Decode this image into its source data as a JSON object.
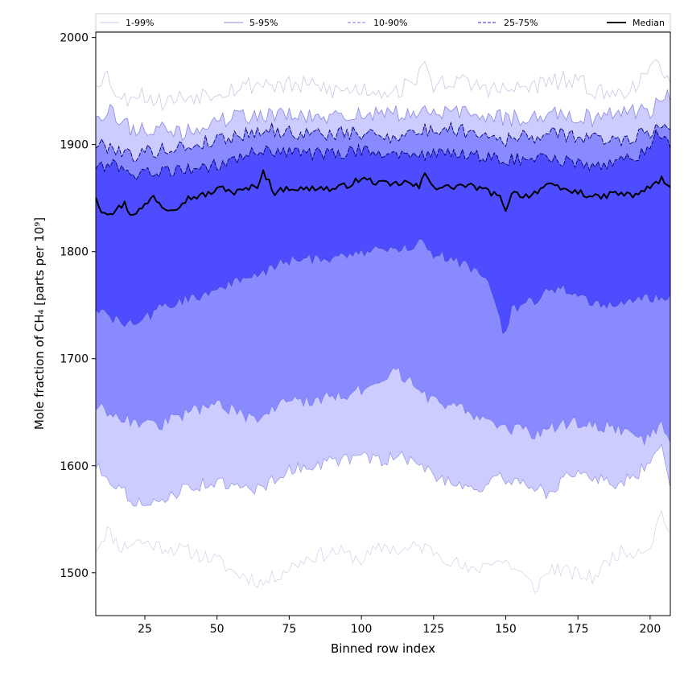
{
  "chart_data": {
    "type": "area",
    "title": "",
    "xlabel": "Binned row index",
    "ylabel": "Mole fraction of CH₄ [parts per 10⁹]",
    "xlim": [
      8,
      207
    ],
    "ylim": [
      1460,
      2005
    ],
    "xticks": [
      25,
      50,
      75,
      100,
      125,
      150,
      175,
      200
    ],
    "yticks": [
      1500,
      1600,
      1700,
      1800,
      1900,
      2000
    ],
    "x_start": 8,
    "x_end": 207,
    "grid": false,
    "legend_position": "top, above plot",
    "bands": [
      {
        "name": "1-99%",
        "color": "#ffffff",
        "line_color": "#c8c8e6",
        "lower_knots": [
          [
            8,
            1522
          ],
          [
            12,
            1540
          ],
          [
            17,
            1523
          ],
          [
            22,
            1530
          ],
          [
            30,
            1525
          ],
          [
            40,
            1520
          ],
          [
            50,
            1512
          ],
          [
            56,
            1500
          ],
          [
            62,
            1495
          ],
          [
            66,
            1490
          ],
          [
            72,
            1500
          ],
          [
            82,
            1515
          ],
          [
            92,
            1520
          ],
          [
            100,
            1512
          ],
          [
            108,
            1525
          ],
          [
            114,
            1520
          ],
          [
            120,
            1525
          ],
          [
            126,
            1520
          ],
          [
            132,
            1510
          ],
          [
            138,
            1500
          ],
          [
            145,
            1512
          ],
          [
            150,
            1510
          ],
          [
            155,
            1500
          ],
          [
            160,
            1485
          ],
          [
            166,
            1505
          ],
          [
            172,
            1500
          ],
          [
            180,
            1495
          ],
          [
            188,
            1518
          ],
          [
            194,
            1520
          ],
          [
            200,
            1525
          ],
          [
            204,
            1558
          ],
          [
            207,
            1535
          ]
        ],
        "upper_knots": [
          [
            8,
            1960
          ],
          [
            12,
            1965
          ],
          [
            17,
            1940
          ],
          [
            22,
            1950
          ],
          [
            30,
            1940
          ],
          [
            40,
            1945
          ],
          [
            50,
            1950
          ],
          [
            60,
            1955
          ],
          [
            66,
            1958
          ],
          [
            72,
            1955
          ],
          [
            82,
            1955
          ],
          [
            92,
            1950
          ],
          [
            100,
            1952
          ],
          [
            110,
            1950
          ],
          [
            118,
            1955
          ],
          [
            121,
            1980
          ],
          [
            124,
            1955
          ],
          [
            130,
            1960
          ],
          [
            140,
            1955
          ],
          [
            150,
            1950
          ],
          [
            160,
            1955
          ],
          [
            170,
            1960
          ],
          [
            178,
            1955
          ],
          [
            186,
            1945
          ],
          [
            194,
            1955
          ],
          [
            200,
            1965
          ],
          [
            203,
            1978
          ],
          [
            207,
            1962
          ]
        ]
      },
      {
        "name": "5-95%",
        "color": "#ccccff",
        "line_color": "#8888dd",
        "lower_knots": [
          [
            8,
            1600
          ],
          [
            14,
            1585
          ],
          [
            20,
            1570
          ],
          [
            26,
            1560
          ],
          [
            32,
            1570
          ],
          [
            40,
            1580
          ],
          [
            50,
            1585
          ],
          [
            58,
            1578
          ],
          [
            66,
            1580
          ],
          [
            74,
            1595
          ],
          [
            82,
            1600
          ],
          [
            92,
            1605
          ],
          [
            100,
            1608
          ],
          [
            108,
            1605
          ],
          [
            114,
            1610
          ],
          [
            120,
            1600
          ],
          [
            126,
            1590
          ],
          [
            132,
            1585
          ],
          [
            140,
            1578
          ],
          [
            148,
            1588
          ],
          [
            156,
            1585
          ],
          [
            164,
            1575
          ],
          [
            172,
            1590
          ],
          [
            180,
            1590
          ],
          [
            188,
            1583
          ],
          [
            194,
            1588
          ],
          [
            200,
            1605
          ],
          [
            204,
            1625
          ],
          [
            207,
            1580
          ]
        ],
        "upper_knots": [
          [
            8,
            1930
          ],
          [
            14,
            1930
          ],
          [
            20,
            1915
          ],
          [
            28,
            1915
          ],
          [
            38,
            1910
          ],
          [
            48,
            1920
          ],
          [
            56,
            1925
          ],
          [
            64,
            1928
          ],
          [
            72,
            1928
          ],
          [
            82,
            1925
          ],
          [
            92,
            1925
          ],
          [
            100,
            1930
          ],
          [
            110,
            1928
          ],
          [
            120,
            1930
          ],
          [
            130,
            1930
          ],
          [
            140,
            1928
          ],
          [
            150,
            1925
          ],
          [
            160,
            1925
          ],
          [
            170,
            1930
          ],
          [
            180,
            1925
          ],
          [
            190,
            1930
          ],
          [
            200,
            1932
          ],
          [
            204,
            1945
          ],
          [
            207,
            1945
          ]
        ]
      },
      {
        "name": "10-90%",
        "color": "#8a8aff",
        "line_color": "#7777ee",
        "lower_knots": [
          [
            8,
            1655
          ],
          [
            14,
            1650
          ],
          [
            22,
            1640
          ],
          [
            30,
            1638
          ],
          [
            40,
            1650
          ],
          [
            50,
            1660
          ],
          [
            58,
            1648
          ],
          [
            64,
            1640
          ],
          [
            72,
            1660
          ],
          [
            80,
            1660
          ],
          [
            90,
            1665
          ],
          [
            100,
            1670
          ],
          [
            108,
            1675
          ],
          [
            112,
            1690
          ],
          [
            118,
            1675
          ],
          [
            124,
            1662
          ],
          [
            130,
            1658
          ],
          [
            138,
            1650
          ],
          [
            146,
            1640
          ],
          [
            152,
            1635
          ],
          [
            160,
            1630
          ],
          [
            170,
            1640
          ],
          [
            180,
            1640
          ],
          [
            190,
            1633
          ],
          [
            198,
            1625
          ],
          [
            204,
            1640
          ],
          [
            207,
            1625
          ]
        ],
        "upper_knots": [
          [
            8,
            1900
          ],
          [
            14,
            1898
          ],
          [
            20,
            1890
          ],
          [
            30,
            1895
          ],
          [
            40,
            1898
          ],
          [
            50,
            1905
          ],
          [
            60,
            1910
          ],
          [
            66,
            1915
          ],
          [
            72,
            1912
          ],
          [
            82,
            1910
          ],
          [
            92,
            1910
          ],
          [
            100,
            1910
          ],
          [
            110,
            1908
          ],
          [
            120,
            1912
          ],
          [
            130,
            1915
          ],
          [
            140,
            1912
          ],
          [
            150,
            1905
          ],
          [
            160,
            1908
          ],
          [
            170,
            1910
          ],
          [
            180,
            1905
          ],
          [
            190,
            1905
          ],
          [
            200,
            1912
          ],
          [
            204,
            1918
          ],
          [
            207,
            1918
          ]
        ]
      },
      {
        "name": "25-75%",
        "color": "#4d4dff",
        "line_color": "#4444cc",
        "lower_knots": [
          [
            8,
            1748
          ],
          [
            12,
            1740
          ],
          [
            18,
            1732
          ],
          [
            24,
            1735
          ],
          [
            30,
            1748
          ],
          [
            36,
            1752
          ],
          [
            42,
            1758
          ],
          [
            48,
            1762
          ],
          [
            54,
            1770
          ],
          [
            60,
            1775
          ],
          [
            66,
            1780
          ],
          [
            72,
            1790
          ],
          [
            80,
            1793
          ],
          [
            90,
            1795
          ],
          [
            100,
            1800
          ],
          [
            110,
            1802
          ],
          [
            118,
            1805
          ],
          [
            121,
            1815
          ],
          [
            124,
            1798
          ],
          [
            130,
            1795
          ],
          [
            136,
            1788
          ],
          [
            142,
            1780
          ],
          [
            146,
            1760
          ],
          [
            149,
            1722
          ],
          [
            152,
            1745
          ],
          [
            156,
            1750
          ],
          [
            162,
            1758
          ],
          [
            168,
            1768
          ],
          [
            174,
            1762
          ],
          [
            182,
            1750
          ],
          [
            190,
            1752
          ],
          [
            198,
            1755
          ],
          [
            204,
            1760
          ],
          [
            207,
            1755
          ]
        ],
        "upper_knots": [
          [
            8,
            1880
          ],
          [
            14,
            1880
          ],
          [
            20,
            1872
          ],
          [
            28,
            1875
          ],
          [
            38,
            1875
          ],
          [
            48,
            1880
          ],
          [
            58,
            1888
          ],
          [
            66,
            1895
          ],
          [
            72,
            1893
          ],
          [
            82,
            1892
          ],
          [
            92,
            1890
          ],
          [
            100,
            1895
          ],
          [
            110,
            1893
          ],
          [
            120,
            1890
          ],
          [
            130,
            1892
          ],
          [
            140,
            1890
          ],
          [
            150,
            1885
          ],
          [
            160,
            1888
          ],
          [
            170,
            1885
          ],
          [
            180,
            1880
          ],
          [
            190,
            1885
          ],
          [
            198,
            1892
          ],
          [
            202,
            1910
          ],
          [
            207,
            1900
          ]
        ]
      }
    ],
    "median": {
      "name": "Median",
      "color": "#000000",
      "knots": [
        [
          8,
          1852
        ],
        [
          10,
          1838
        ],
        [
          14,
          1837
        ],
        [
          18,
          1845
        ],
        [
          20,
          1835
        ],
        [
          24,
          1840
        ],
        [
          28,
          1852
        ],
        [
          32,
          1840
        ],
        [
          36,
          1842
        ],
        [
          40,
          1850
        ],
        [
          44,
          1852
        ],
        [
          48,
          1855
        ],
        [
          52,
          1860
        ],
        [
          56,
          1855
        ],
        [
          60,
          1858
        ],
        [
          64,
          1862
        ],
        [
          66,
          1875
        ],
        [
          70,
          1855
        ],
        [
          75,
          1860
        ],
        [
          80,
          1858
        ],
        [
          85,
          1860
        ],
        [
          90,
          1858
        ],
        [
          95,
          1862
        ],
        [
          100,
          1868
        ],
        [
          105,
          1865
        ],
        [
          110,
          1862
        ],
        [
          115,
          1865
        ],
        [
          120,
          1860
        ],
        [
          122,
          1872
        ],
        [
          126,
          1860
        ],
        [
          130,
          1860
        ],
        [
          135,
          1862
        ],
        [
          140,
          1860
        ],
        [
          145,
          1855
        ],
        [
          148,
          1850
        ],
        [
          150,
          1840
        ],
        [
          152,
          1855
        ],
        [
          158,
          1852
        ],
        [
          164,
          1862
        ],
        [
          170,
          1858
        ],
        [
          176,
          1855
        ],
        [
          182,
          1850
        ],
        [
          188,
          1855
        ],
        [
          194,
          1852
        ],
        [
          200,
          1860
        ],
        [
          204,
          1868
        ],
        [
          207,
          1858
        ]
      ]
    }
  },
  "legend": {
    "entries": [
      "1-99%",
      "5-95%",
      "10-90%",
      "25-75%",
      "Median"
    ]
  },
  "colors": {
    "axis": "#000000",
    "plot_background": "#ffffff",
    "legend_border": "#cccccc"
  }
}
